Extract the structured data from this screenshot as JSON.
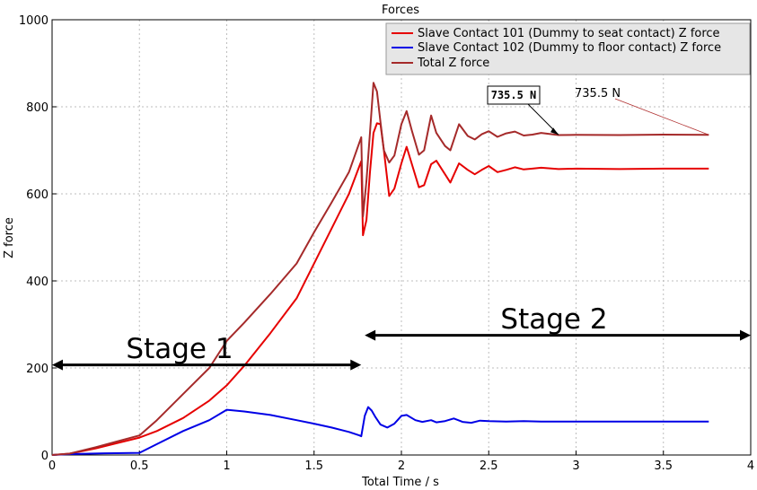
{
  "chart_data": {
    "type": "line",
    "title": "Forces",
    "xlabel": "Total Time / s",
    "ylabel": "Z force",
    "xlim": [
      0,
      4
    ],
    "ylim": [
      0,
      1000
    ],
    "grid": true,
    "legend_position": "top-right",
    "x_ticks": [
      "0",
      "0.5",
      "1",
      "1.5",
      "2",
      "2.5",
      "3",
      "3.5",
      "4"
    ],
    "y_ticks": [
      "0",
      "200",
      "400",
      "600",
      "800",
      "1000"
    ],
    "series": [
      {
        "name": "Slave Contact 101 (Dummy to seat contact) Z force",
        "color": "#e60000",
        "points": [
          [
            0,
            0
          ],
          [
            0.1,
            3
          ],
          [
            0.25,
            15
          ],
          [
            0.5,
            40
          ],
          [
            0.6,
            55
          ],
          [
            0.75,
            85
          ],
          [
            0.9,
            125
          ],
          [
            1.0,
            160
          ],
          [
            1.1,
            205
          ],
          [
            1.25,
            280
          ],
          [
            1.4,
            360
          ],
          [
            1.5,
            440
          ],
          [
            1.6,
            520
          ],
          [
            1.7,
            600
          ],
          [
            1.77,
            675
          ],
          [
            1.78,
            505
          ],
          [
            1.8,
            540
          ],
          [
            1.82,
            650
          ],
          [
            1.84,
            740
          ],
          [
            1.86,
            762
          ],
          [
            1.88,
            760
          ],
          [
            1.9,
            700
          ],
          [
            1.93,
            595
          ],
          [
            1.96,
            612
          ],
          [
            2.0,
            670
          ],
          [
            2.03,
            708
          ],
          [
            2.06,
            668
          ],
          [
            2.1,
            615
          ],
          [
            2.13,
            620
          ],
          [
            2.17,
            668
          ],
          [
            2.2,
            676
          ],
          [
            2.25,
            645
          ],
          [
            2.28,
            626
          ],
          [
            2.33,
            670
          ],
          [
            2.38,
            655
          ],
          [
            2.42,
            645
          ],
          [
            2.46,
            655
          ],
          [
            2.5,
            664
          ],
          [
            2.55,
            650
          ],
          [
            2.6,
            655
          ],
          [
            2.65,
            661
          ],
          [
            2.7,
            656
          ],
          [
            2.75,
            658
          ],
          [
            2.8,
            660
          ],
          [
            2.9,
            657
          ],
          [
            3.0,
            658
          ],
          [
            3.25,
            657
          ],
          [
            3.5,
            658
          ],
          [
            3.76,
            658
          ]
        ]
      },
      {
        "name": "Slave Contact 102 (Dummy to floor contact) Z force",
        "color": "#0000e6",
        "points": [
          [
            0,
            0
          ],
          [
            0.1,
            2
          ],
          [
            0.3,
            4
          ],
          [
            0.5,
            5
          ],
          [
            0.6,
            25
          ],
          [
            0.75,
            55
          ],
          [
            0.9,
            80
          ],
          [
            1.0,
            104
          ],
          [
            1.1,
            100
          ],
          [
            1.25,
            92
          ],
          [
            1.4,
            80
          ],
          [
            1.5,
            72
          ],
          [
            1.6,
            63
          ],
          [
            1.7,
            53
          ],
          [
            1.76,
            45
          ],
          [
            1.77,
            43
          ],
          [
            1.79,
            90
          ],
          [
            1.81,
            110
          ],
          [
            1.83,
            102
          ],
          [
            1.85,
            88
          ],
          [
            1.88,
            70
          ],
          [
            1.92,
            63
          ],
          [
            1.96,
            72
          ],
          [
            2.0,
            90
          ],
          [
            2.03,
            92
          ],
          [
            2.08,
            80
          ],
          [
            2.12,
            76
          ],
          [
            2.17,
            80
          ],
          [
            2.2,
            75
          ],
          [
            2.25,
            78
          ],
          [
            2.3,
            84
          ],
          [
            2.35,
            76
          ],
          [
            2.4,
            74
          ],
          [
            2.45,
            79
          ],
          [
            2.5,
            78
          ],
          [
            2.6,
            77
          ],
          [
            2.7,
            78
          ],
          [
            2.8,
            77
          ],
          [
            3.0,
            77
          ],
          [
            3.5,
            77
          ],
          [
            3.76,
            77
          ]
        ]
      },
      {
        "name": "Total Z force",
        "color": "#a52a2a",
        "points": [
          [
            0,
            0
          ],
          [
            0.1,
            3
          ],
          [
            0.25,
            18
          ],
          [
            0.5,
            45
          ],
          [
            0.6,
            80
          ],
          [
            0.75,
            140
          ],
          [
            0.9,
            200
          ],
          [
            1.0,
            262
          ],
          [
            1.1,
            304
          ],
          [
            1.25,
            370
          ],
          [
            1.4,
            440
          ],
          [
            1.5,
            512
          ],
          [
            1.6,
            580
          ],
          [
            1.7,
            650
          ],
          [
            1.77,
            730
          ],
          [
            1.78,
            548
          ],
          [
            1.8,
            630
          ],
          [
            1.82,
            740
          ],
          [
            1.84,
            855
          ],
          [
            1.86,
            835
          ],
          [
            1.88,
            765
          ],
          [
            1.9,
            700
          ],
          [
            1.93,
            672
          ],
          [
            1.96,
            688
          ],
          [
            2.0,
            760
          ],
          [
            2.03,
            790
          ],
          [
            2.06,
            745
          ],
          [
            2.1,
            690
          ],
          [
            2.13,
            700
          ],
          [
            2.17,
            780
          ],
          [
            2.2,
            740
          ],
          [
            2.25,
            710
          ],
          [
            2.28,
            700
          ],
          [
            2.33,
            760
          ],
          [
            2.38,
            733
          ],
          [
            2.42,
            725
          ],
          [
            2.46,
            737
          ],
          [
            2.5,
            744
          ],
          [
            2.55,
            731
          ],
          [
            2.6,
            739
          ],
          [
            2.65,
            743
          ],
          [
            2.7,
            734
          ],
          [
            2.75,
            736
          ],
          [
            2.8,
            740
          ],
          [
            2.9,
            735
          ],
          [
            3.0,
            735.5
          ],
          [
            3.25,
            735
          ],
          [
            3.5,
            736
          ],
          [
            3.76,
            735.5
          ]
        ]
      }
    ],
    "annotations": {
      "boxed_label": "735.5 N",
      "plain_label": "735.5 N",
      "stage1": {
        "label": "Stage 1",
        "x_start": 0,
        "x_end": 1.77,
        "y": 207
      },
      "stage2": {
        "label": "Stage 2",
        "x_start": 1.79,
        "x_end": 4,
        "y": 275
      }
    }
  }
}
